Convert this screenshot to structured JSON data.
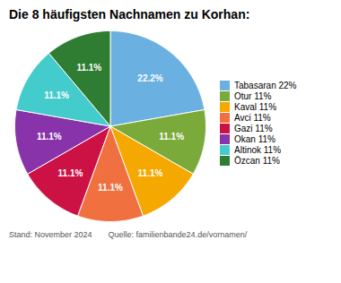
{
  "chart_data": {
    "type": "pie",
    "title": "Die 8 häufigsten Nachnamen zu Korhan:",
    "categories": [
      "Tabasaran 22%",
      "Otur 11%",
      "Kaval 11%",
      "Avci 11%",
      "Gazi 11%",
      "Okan 11%",
      "Altinok 11%",
      "Özcan 11%"
    ],
    "values": [
      22.2,
      11.1,
      11.1,
      11.1,
      11.1,
      11.1,
      11.1,
      11.1
    ],
    "value_labels": [
      "22.2%",
      "11.1%",
      "11.1%",
      "11.1%",
      "11.1%",
      "11.1%",
      "11.1%",
      "11.1%"
    ],
    "colors": [
      "#6ab0e0",
      "#7aab3a",
      "#f5a800",
      "#f07040",
      "#cc1144",
      "#8833aa",
      "#44cccc",
      "#2e7d32"
    ],
    "data_labels": true,
    "legend": "right",
    "annotations": [
      "Stand: November 2024",
      "Quelle: familienbande24.de/vornamen/"
    ]
  }
}
